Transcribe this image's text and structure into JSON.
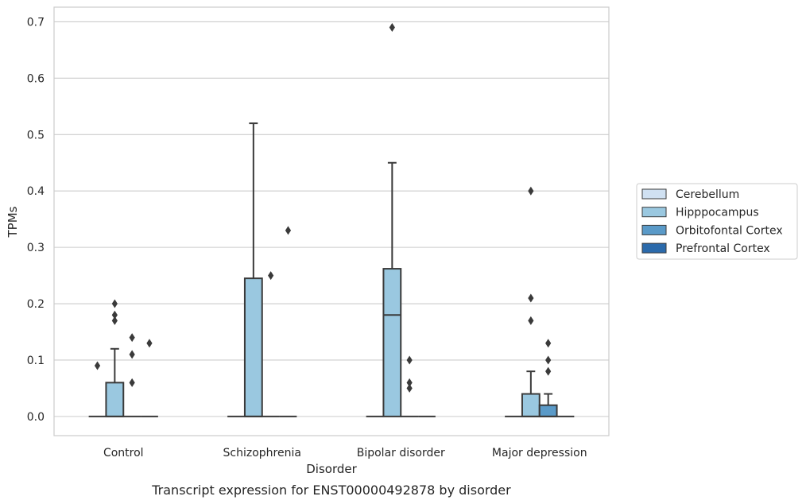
{
  "chart_data": {
    "type": "box",
    "xlabel": "Disorder",
    "ylabel": "TPMs",
    "caption": "Transcript expression for ENST00000492878 by disorder",
    "ylim": [
      -0.034,
      0.726
    ],
    "yticks": [
      "0.0",
      "0.1",
      "0.2",
      "0.3",
      "0.4",
      "0.5",
      "0.6",
      "0.7"
    ],
    "grid": "horizontal",
    "legend_position": "right",
    "categories": [
      "Control",
      "Schizophrenia",
      "Bipolar disorder",
      "Major depression"
    ],
    "series": [
      {
        "name": "Cerebellum",
        "color": "#d0e1f2"
      },
      {
        "name": "Hipppocampus",
        "color": "#9ac8e0"
      },
      {
        "name": "Orbitofontal Cortex",
        "color": "#5a9ac8"
      },
      {
        "name": "Prefrontal Cortex",
        "color": "#2b6aab"
      }
    ],
    "boxes": [
      {
        "category": "Control",
        "series": "Cerebellum",
        "q1": 0,
        "median": 0,
        "q3": 0,
        "whisker_low": 0,
        "whisker_high": 0,
        "outliers": [
          0.09
        ]
      },
      {
        "category": "Control",
        "series": "Hipppocampus",
        "q1": 0,
        "median": 0,
        "q3": 0.06,
        "whisker_low": 0,
        "whisker_high": 0.12,
        "outliers": [
          0.2,
          0.18,
          0.17
        ]
      },
      {
        "category": "Control",
        "series": "Orbitofontal Cortex",
        "q1": 0,
        "median": 0,
        "q3": 0,
        "whisker_low": 0,
        "whisker_high": 0,
        "outliers": [
          0.14,
          0.11,
          0.06
        ]
      },
      {
        "category": "Control",
        "series": "Prefrontal Cortex",
        "q1": 0,
        "median": 0,
        "q3": 0,
        "whisker_low": 0,
        "whisker_high": 0,
        "outliers": [
          0.13
        ]
      },
      {
        "category": "Schizophrenia",
        "series": "Cerebellum",
        "q1": 0,
        "median": 0,
        "q3": 0,
        "whisker_low": 0,
        "whisker_high": 0,
        "outliers": []
      },
      {
        "category": "Schizophrenia",
        "series": "Hipppocampus",
        "q1": 0,
        "median": 0,
        "q3": 0.245,
        "whisker_low": 0,
        "whisker_high": 0.52,
        "outliers": []
      },
      {
        "category": "Schizophrenia",
        "series": "Orbitofontal Cortex",
        "q1": 0,
        "median": 0,
        "q3": 0,
        "whisker_low": 0,
        "whisker_high": 0,
        "outliers": [
          0.25
        ]
      },
      {
        "category": "Schizophrenia",
        "series": "Prefrontal Cortex",
        "q1": 0,
        "median": 0,
        "q3": 0,
        "whisker_low": 0,
        "whisker_high": 0,
        "outliers": [
          0.33
        ]
      },
      {
        "category": "Bipolar disorder",
        "series": "Cerebellum",
        "q1": 0,
        "median": 0,
        "q3": 0,
        "whisker_low": 0,
        "whisker_high": 0,
        "outliers": []
      },
      {
        "category": "Bipolar disorder",
        "series": "Hipppocampus",
        "q1": 0,
        "median": 0.18,
        "q3": 0.262,
        "whisker_low": 0,
        "whisker_high": 0.45,
        "outliers": [
          0.69
        ]
      },
      {
        "category": "Bipolar disorder",
        "series": "Orbitofontal Cortex",
        "q1": 0,
        "median": 0,
        "q3": 0,
        "whisker_low": 0,
        "whisker_high": 0,
        "outliers": [
          0.1,
          0.06,
          0.05
        ]
      },
      {
        "category": "Bipolar disorder",
        "series": "Prefrontal Cortex",
        "q1": 0,
        "median": 0,
        "q3": 0,
        "whisker_low": 0,
        "whisker_high": 0,
        "outliers": []
      },
      {
        "category": "Major depression",
        "series": "Cerebellum",
        "q1": 0,
        "median": 0,
        "q3": 0,
        "whisker_low": 0,
        "whisker_high": 0,
        "outliers": []
      },
      {
        "category": "Major depression",
        "series": "Hipppocampus",
        "q1": 0,
        "median": 0,
        "q3": 0.04,
        "whisker_low": 0,
        "whisker_high": 0.08,
        "outliers": [
          0.4,
          0.21,
          0.17
        ]
      },
      {
        "category": "Major depression",
        "series": "Orbitofontal Cortex",
        "q1": 0,
        "median": 0,
        "q3": 0.02,
        "whisker_low": 0,
        "whisker_high": 0.04,
        "outliers": [
          0.13,
          0.1,
          0.08
        ]
      },
      {
        "category": "Major depression",
        "series": "Prefrontal Cortex",
        "q1": 0,
        "median": 0,
        "q3": 0,
        "whisker_low": 0,
        "whisker_high": 0,
        "outliers": []
      }
    ]
  }
}
